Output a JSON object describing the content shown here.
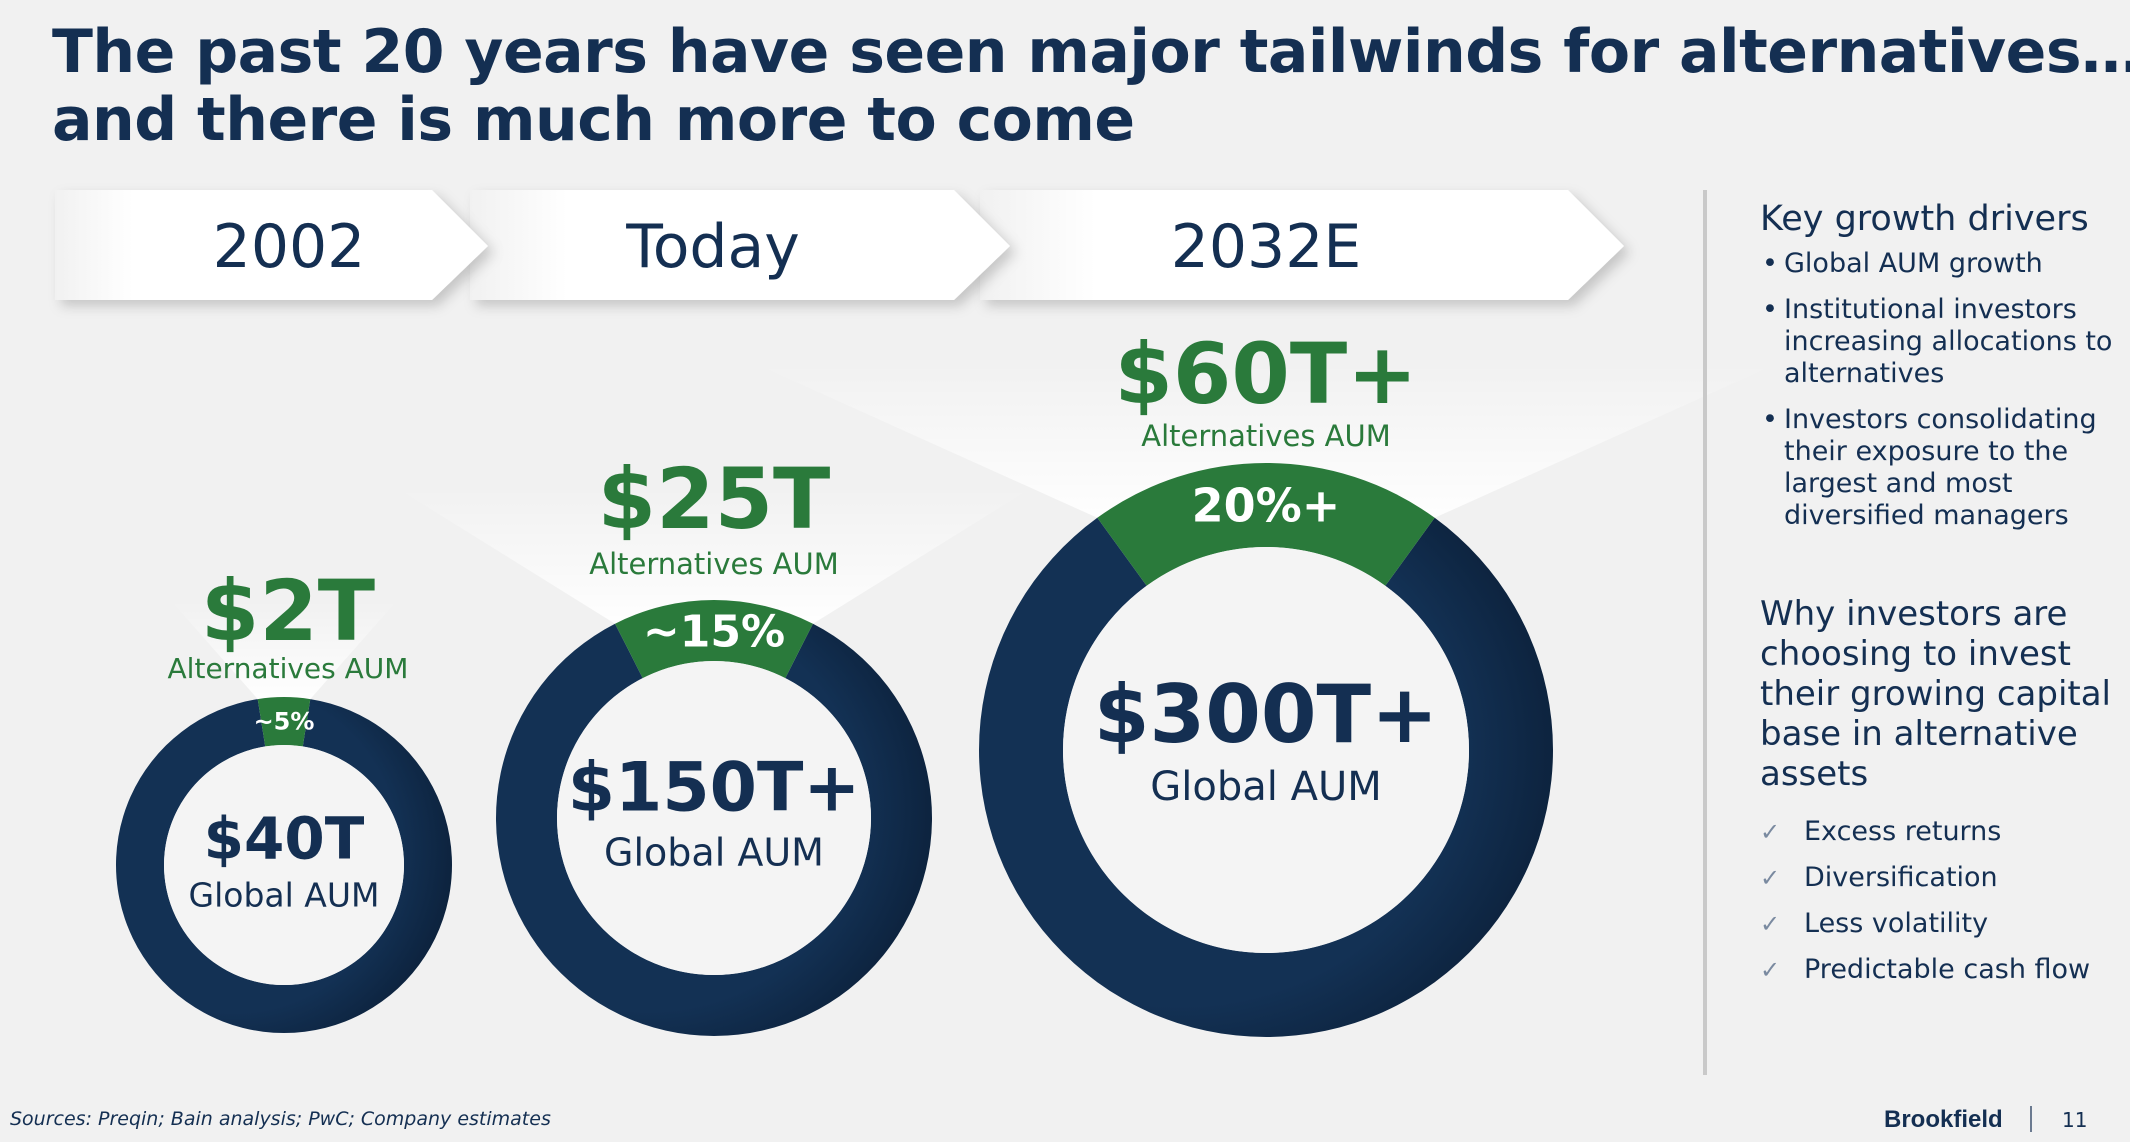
{
  "title": {
    "line1": "The past 20 years have seen major tailwinds for alternatives…",
    "line2": "and there is much more to come"
  },
  "colors": {
    "navy": "#133154",
    "green": "#2a7a3b",
    "text_green": "#2a7a3b",
    "text_navy": "#142f52"
  },
  "chart_data": {
    "type": "pie",
    "subtype": "donut",
    "categories": [
      "2002",
      "Today",
      "2032E"
    ],
    "series": [
      {
        "period": "2002",
        "global_aum": "$40T",
        "global_label": "Global AUM",
        "alt_aum": "$2T",
        "alt_label": "Alternatives AUM",
        "alt_share_label": "~5%",
        "alt_share": 5
      },
      {
        "period": "Today",
        "global_aum": "$150T+",
        "global_label": "Global AUM",
        "alt_aum": "$25T",
        "alt_label": "Alternatives AUM",
        "alt_share_label": "~15%",
        "alt_share": 15
      },
      {
        "period": "2032E",
        "global_aum": "$300T+",
        "global_label": "Global AUM",
        "alt_aum": "$60T+",
        "alt_label": "Alternatives AUM",
        "alt_share_label": "20%+",
        "alt_share": 20
      }
    ]
  },
  "sidebar": {
    "drivers_heading": "Key growth drivers",
    "drivers": [
      "Global AUM growth",
      "Institutional investors increasing allocations to alternatives",
      "Investors consolidating their exposure to the largest and most diversified managers"
    ],
    "why_heading": "Why investors are choosing to invest their growing capital base in alternative assets",
    "reasons": [
      "Excess returns",
      "Diversification",
      "Less volatility",
      "Predictable cash flow"
    ],
    "check_icon": "check-icon"
  },
  "footer": {
    "sources": "Sources: Preqin; Bain analysis; PwC; Company estimates",
    "brand": "Brookfield",
    "page": "11"
  }
}
